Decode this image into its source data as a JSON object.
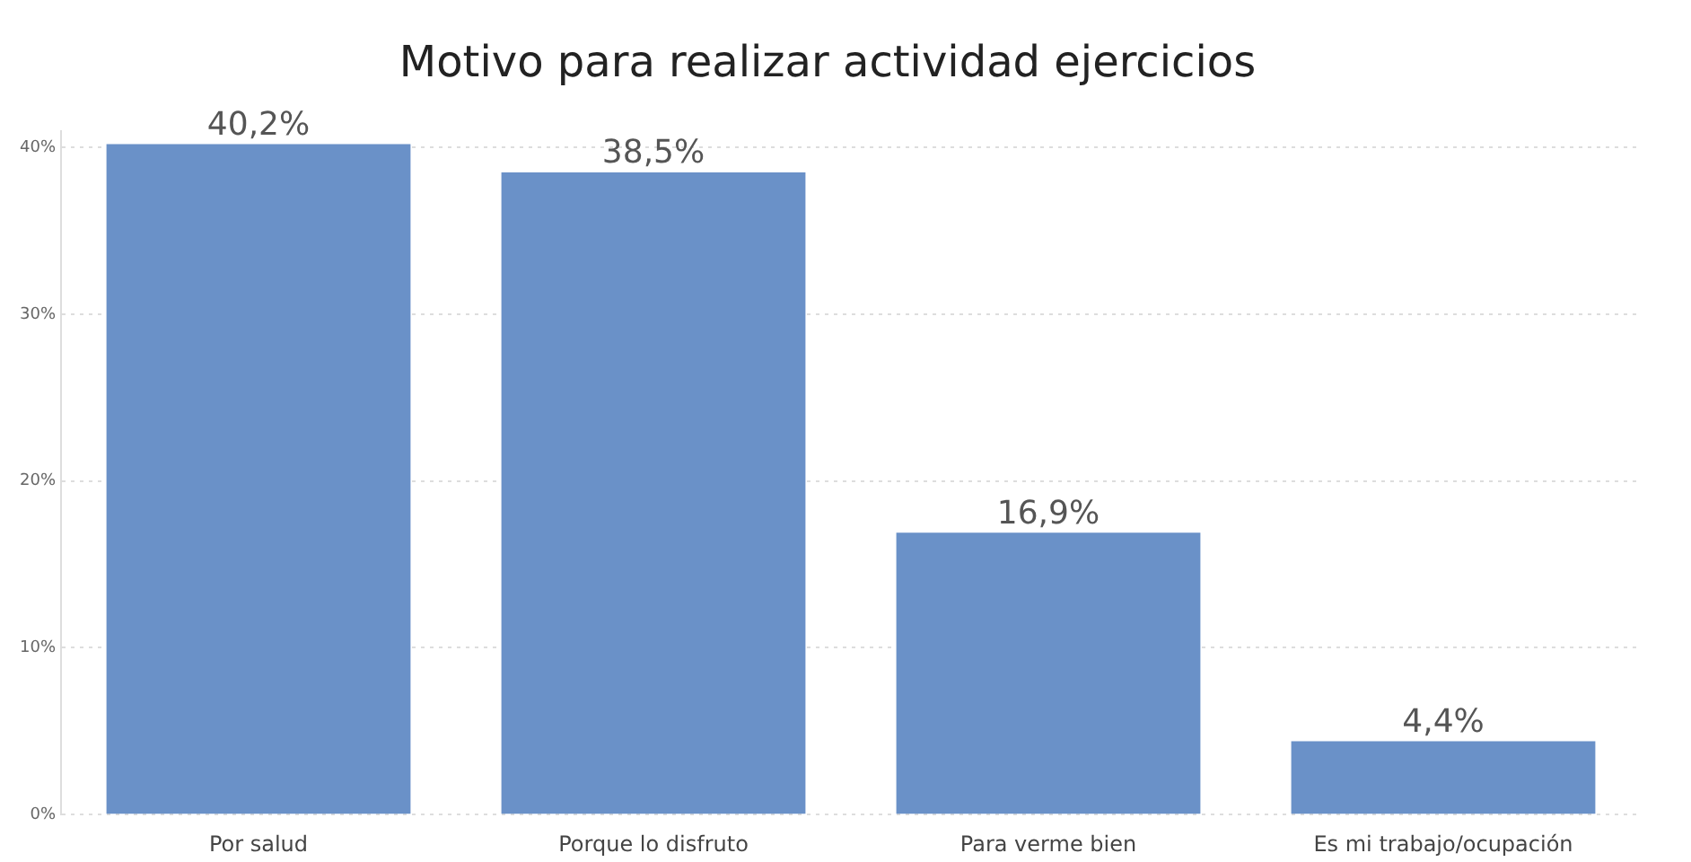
{
  "chart_data": {
    "type": "bar",
    "title": "Motivo para realizar actividad ejercicios",
    "categories": [
      "Por salud",
      "Porque lo disfruto",
      "Para verme bien",
      "Es mi trabajo/ocupación"
    ],
    "values": [
      40.2,
      38.5,
      16.9,
      4.4
    ],
    "value_labels": [
      "40,2%",
      "38,5%",
      "16,9%",
      "4,4%"
    ],
    "color": "#6a91c8",
    "ylim": [
      0,
      41
    ],
    "yticks": [
      {
        "value": 0,
        "label": "0%"
      },
      {
        "value": 10,
        "label": "10%"
      },
      {
        "value": 20,
        "label": "20%"
      },
      {
        "value": 30,
        "label": "30%"
      },
      {
        "value": 40,
        "label": "40%"
      }
    ],
    "grid": "y",
    "legend": false
  }
}
